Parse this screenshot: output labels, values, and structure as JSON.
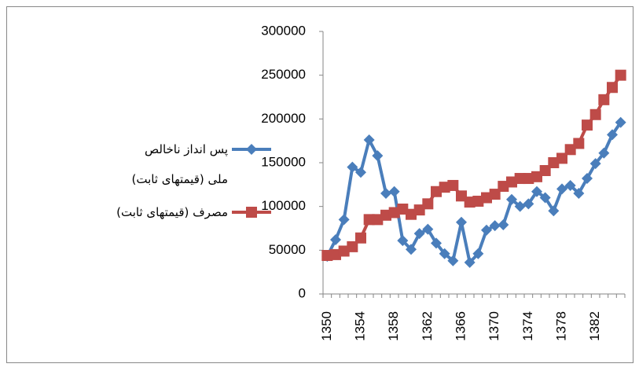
{
  "chart_data": {
    "type": "line",
    "categories": [
      "1350",
      null,
      null,
      null,
      "1354",
      null,
      null,
      null,
      "1358",
      null,
      null,
      null,
      "1362",
      null,
      null,
      null,
      "1366",
      null,
      null,
      null,
      "1370",
      null,
      null,
      null,
      "1374",
      null,
      null,
      null,
      "1378",
      null,
      null,
      null,
      "1382",
      null,
      null,
      null
    ],
    "series": [
      {
        "name": "پس انداز ناخالص ملی (قیمتهای ثابت)",
        "color": "#4a7ebb",
        "marker": "diamond",
        "values": [
          43000,
          62000,
          85000,
          145000,
          139000,
          176000,
          158000,
          115000,
          117000,
          61000,
          51000,
          69000,
          74000,
          58000,
          46000,
          38000,
          82000,
          36000,
          46000,
          73000,
          78000,
          79000,
          108000,
          100000,
          103000,
          117000,
          110000,
          95000,
          120000,
          124000,
          115000,
          132000,
          149000,
          161000,
          182000,
          196000
        ]
      },
      {
        "name": "مصرف (قیمتهای ثابت)",
        "color": "#be4b48",
        "marker": "square",
        "values": [
          44000,
          45000,
          49000,
          54000,
          64000,
          85000,
          85000,
          90000,
          93000,
          97000,
          91000,
          96000,
          103000,
          117000,
          122000,
          124000,
          112000,
          105000,
          106000,
          110000,
          114000,
          123000,
          128000,
          132000,
          132000,
          134000,
          141000,
          150000,
          155000,
          165000,
          172000,
          193000,
          205000,
          222000,
          236000,
          250000
        ]
      }
    ],
    "ylim": [
      0,
      300000
    ],
    "yticks": [
      0,
      50000,
      100000,
      150000,
      200000,
      250000,
      300000
    ],
    "grid": false,
    "legend": "left"
  }
}
